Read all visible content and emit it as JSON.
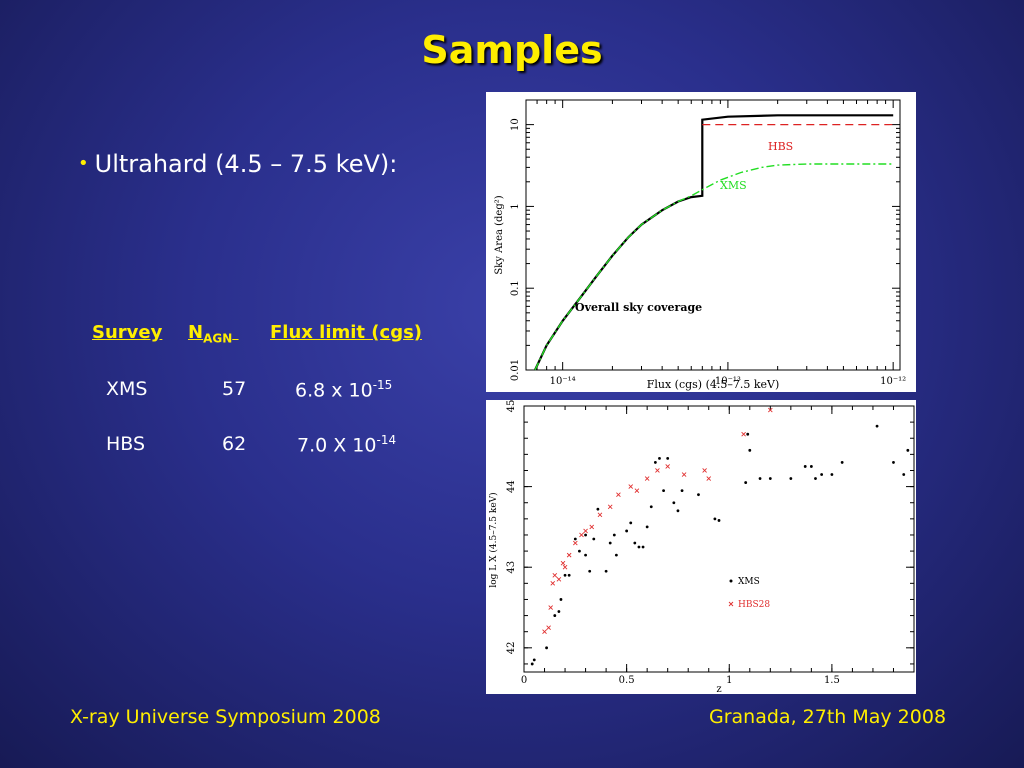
{
  "slide": {
    "title": "Samples",
    "bullet": "Ultrahard (4.5 – 7.5 keV):",
    "table": {
      "headers": {
        "survey": "Survey",
        "n": "N",
        "n_sub": "AGN",
        "flux": "Flux limit (cgs)"
      },
      "rows": [
        {
          "survey": "XMS",
          "n": "57",
          "flux": "6.8 x 10",
          "exp": "-15"
        },
        {
          "survey": "HBS",
          "n": "62",
          "flux": "7.0 X 10",
          "exp": "-14"
        }
      ]
    },
    "footer_left": "X-ray Universe Symposium 2008",
    "footer_right": "Granada, 27th May 2008"
  },
  "colors": {
    "title": "#ffee00",
    "hbs": "#dd2222",
    "xms": "#22dd22",
    "total": "#000000"
  },
  "chart_data": [
    {
      "type": "line",
      "title": "",
      "annotation": "Overall sky coverage",
      "xlabel": "Flux (cgs) (4.5–7.5 keV)",
      "ylabel": "Sky Area (deg²)",
      "xscale": "log",
      "yscale": "log",
      "xlim": [
        6e-15,
        1.1e-12
      ],
      "ylim": [
        0.01,
        20
      ],
      "xtick_labels": [
        "10⁻¹⁴",
        "10⁻¹³",
        "10⁻¹²"
      ],
      "ytick_labels": [
        "0.01",
        "0.1",
        "1",
        "10"
      ],
      "series": [
        {
          "name": "",
          "style": "solid",
          "color": "#000000",
          "x": [
            6.8e-15,
            8e-15,
            1e-14,
            1.3e-14,
            1.6e-14,
            2e-14,
            2.5e-14,
            3e-14,
            4e-14,
            5e-14,
            6e-14,
            7e-14,
            7e-14,
            1e-13,
            2e-13,
            1e-12
          ],
          "y": [
            0.01,
            0.02,
            0.04,
            0.08,
            0.14,
            0.25,
            0.42,
            0.6,
            0.9,
            1.15,
            1.3,
            1.35,
            11.5,
            12.5,
            13,
            13
          ]
        },
        {
          "name": "HBS",
          "style": "dashed",
          "color": "#dd2222",
          "x": [
            7e-14,
            1e-12
          ],
          "y": [
            10,
            10
          ]
        },
        {
          "name": "XMS",
          "style": "dashdot",
          "color": "#22dd22",
          "x": [
            6.8e-15,
            8e-15,
            1e-14,
            1.3e-14,
            1.6e-14,
            2e-14,
            2.5e-14,
            3e-14,
            4e-14,
            5e-14,
            6e-14,
            7e-14,
            9e-14,
            1.2e-13,
            1.6e-13,
            2e-13,
            3e-13,
            1e-12
          ],
          "y": [
            0.01,
            0.02,
            0.04,
            0.08,
            0.14,
            0.25,
            0.42,
            0.6,
            0.9,
            1.15,
            1.35,
            1.6,
            2.1,
            2.6,
            3.0,
            3.2,
            3.3,
            3.3
          ]
        }
      ]
    },
    {
      "type": "scatter",
      "title": "",
      "xlabel": "z",
      "ylabel": "log L X (4.5–7.5 keV)",
      "xlim": [
        0,
        1.9
      ],
      "ylim": [
        41.7,
        45
      ],
      "xtick_labels": [
        "0",
        "0.5",
        "1",
        "1.5"
      ],
      "ytick_labels": [
        "42",
        "43",
        "44",
        "45"
      ],
      "legend": "bottom-right",
      "series": [
        {
          "name": "XMS",
          "marker": "dot",
          "color": "#000000",
          "points": [
            [
              0.04,
              41.8
            ],
            [
              0.05,
              41.85
            ],
            [
              0.11,
              42.0
            ],
            [
              0.15,
              42.4
            ],
            [
              0.17,
              42.45
            ],
            [
              0.18,
              42.6
            ],
            [
              0.2,
              42.9
            ],
            [
              0.22,
              42.9
            ],
            [
              0.25,
              43.35
            ],
            [
              0.27,
              43.2
            ],
            [
              0.3,
              43.15
            ],
            [
              0.3,
              43.4
            ],
            [
              0.32,
              42.95
            ],
            [
              0.34,
              43.35
            ],
            [
              0.36,
              43.72
            ],
            [
              0.4,
              42.95
            ],
            [
              0.42,
              43.3
            ],
            [
              0.44,
              43.4
            ],
            [
              0.45,
              43.15
            ],
            [
              0.5,
              43.45
            ],
            [
              0.52,
              43.55
            ],
            [
              0.54,
              43.3
            ],
            [
              0.56,
              43.25
            ],
            [
              0.58,
              43.25
            ],
            [
              0.6,
              43.5
            ],
            [
              0.62,
              43.75
            ],
            [
              0.64,
              44.3
            ],
            [
              0.66,
              44.35
            ],
            [
              0.68,
              43.95
            ],
            [
              0.7,
              44.35
            ],
            [
              0.73,
              43.8
            ],
            [
              0.75,
              43.7
            ],
            [
              0.77,
              43.95
            ],
            [
              0.85,
              43.9
            ],
            [
              0.93,
              43.6
            ],
            [
              0.95,
              43.58
            ],
            [
              1.08,
              44.05
            ],
            [
              1.09,
              44.65
            ],
            [
              1.1,
              44.45
            ],
            [
              1.15,
              44.1
            ],
            [
              1.2,
              44.1
            ],
            [
              1.3,
              44.1
            ],
            [
              1.37,
              44.25
            ],
            [
              1.4,
              44.25
            ],
            [
              1.42,
              44.1
            ],
            [
              1.45,
              44.15
            ],
            [
              1.5,
              44.15
            ],
            [
              1.55,
              44.3
            ],
            [
              1.72,
              44.75
            ],
            [
              1.8,
              44.3
            ],
            [
              1.85,
              44.15
            ],
            [
              1.87,
              44.45
            ]
          ]
        },
        {
          "name": "HBS28",
          "marker": "cross",
          "color": "#e03030",
          "points": [
            [
              0.1,
              42.2
            ],
            [
              0.12,
              42.25
            ],
            [
              0.13,
              42.5
            ],
            [
              0.14,
              42.8
            ],
            [
              0.15,
              42.9
            ],
            [
              0.17,
              42.85
            ],
            [
              0.19,
              43.05
            ],
            [
              0.2,
              43.0
            ],
            [
              0.22,
              43.15
            ],
            [
              0.25,
              43.3
            ],
            [
              0.28,
              43.4
            ],
            [
              0.3,
              43.45
            ],
            [
              0.33,
              43.5
            ],
            [
              0.37,
              43.65
            ],
            [
              0.42,
              43.75
            ],
            [
              0.46,
              43.9
            ],
            [
              0.52,
              44.0
            ],
            [
              0.55,
              43.95
            ],
            [
              0.6,
              44.1
            ],
            [
              0.65,
              44.2
            ],
            [
              0.7,
              44.25
            ],
            [
              0.78,
              44.15
            ],
            [
              0.88,
              44.2
            ],
            [
              0.9,
              44.1
            ],
            [
              1.07,
              44.65
            ],
            [
              1.2,
              44.95
            ]
          ]
        }
      ]
    }
  ]
}
